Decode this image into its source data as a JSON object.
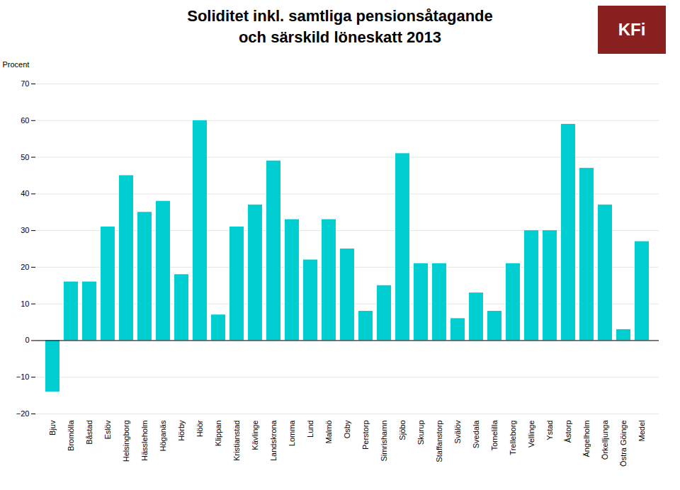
{
  "chart_data": {
    "type": "bar",
    "title": "Soliditet inkl. samtliga pensionsåtagande",
    "subtitle": "och särskild löneskatt 2013",
    "ylabel": "Procent",
    "annotations": [
      {
        "text": "KFi",
        "color": "#8B2020"
      }
    ],
    "categories": [
      "Bjuv",
      "Bromölla",
      "Båstad",
      "Eslöv",
      "Helsingborg",
      "Hässleholm",
      "Höganäs",
      "Hörby",
      "Höör",
      "Klippan",
      "Kristianstad",
      "Kävlinge",
      "Landskrona",
      "Lomma",
      "Lund",
      "Malmö",
      "Osby",
      "Perstorp",
      "Simrishamn",
      "Sjöbo",
      "Skurup",
      "Staffanstorp",
      "Svälöv",
      "Svedala",
      "Tomelilla",
      "Trelleborg",
      "Vellinge",
      "Ystad",
      "Åstorp",
      "Ängelholm",
      "Örkelljunga",
      "Östra Göinge",
      "Medel"
    ],
    "values": [
      -14,
      16,
      16,
      31,
      45,
      35,
      38,
      18,
      60,
      7,
      31,
      37,
      49,
      33,
      22,
      33,
      25,
      8,
      15,
      51,
      21,
      21,
      6,
      13,
      8,
      21,
      30,
      30,
      59,
      47,
      37,
      3,
      27
    ],
    "color": "#00CED1",
    "ylim": [
      -20,
      70
    ],
    "yticks": [
      -20,
      -10,
      0,
      10,
      20,
      30,
      40,
      50,
      60,
      70
    ],
    "grid": true
  }
}
